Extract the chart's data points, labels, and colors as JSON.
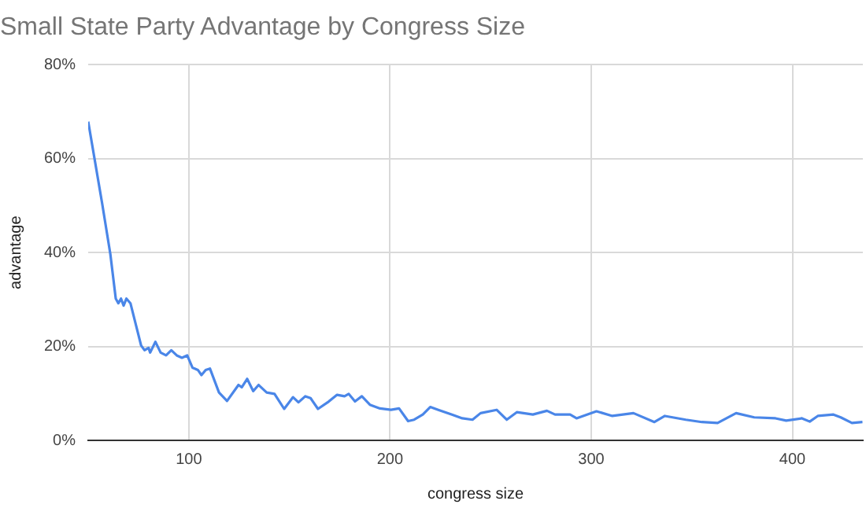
{
  "chart_data": {
    "type": "line",
    "title": "Small State Party Advantage by Congress Size",
    "xlabel": "congress size",
    "ylabel": "advantage",
    "x": [
      50,
      57,
      61,
      63.7,
      65,
      66.3,
      67.6,
      69,
      71,
      76.3,
      78,
      80,
      80.8,
      83.4,
      86,
      88.7,
      91.3,
      94,
      96.6,
      99.2,
      101.8,
      104.5,
      106.3,
      108.4,
      110.5,
      115,
      119,
      124.7,
      126.3,
      129,
      132,
      134.7,
      138.7,
      142.6,
      147.4,
      151.8,
      154.5,
      157.9,
      160.5,
      164.2,
      169,
      173.7,
      177.4,
      179.5,
      182.6,
      186,
      190,
      195,
      200.5,
      204.5,
      209,
      212,
      216.3,
      220,
      224,
      230.8,
      235.9,
      241,
      245,
      253,
      258,
      263,
      271,
      278,
      282,
      289.5,
      292.7,
      302.6,
      310.5,
      321,
      331.4,
      336.6,
      347,
      355,
      362.8,
      372,
      381,
      391.6,
      396.9,
      404.7,
      408.6,
      412.6,
      420.4,
      424,
      429.6,
      434.8
    ],
    "series": [
      {
        "color": "#4a86e8",
        "values": [
          67.9,
          50.3,
          39.7,
          30.2,
          29.2,
          30.2,
          28.7,
          30.2,
          29.2,
          20.2,
          19.2,
          19.7,
          18.7,
          21.0,
          18.7,
          18.1,
          19.2,
          18.1,
          17.6,
          18.1,
          15.5,
          15.0,
          13.9,
          15.0,
          15.3,
          10.2,
          8.4,
          11.8,
          11.3,
          13.1,
          10.5,
          11.8,
          10.2,
          9.9,
          6.7,
          9.2,
          8.1,
          9.4,
          9.0,
          6.7,
          8.1,
          9.7,
          9.4,
          9.9,
          8.3,
          9.4,
          7.6,
          6.8,
          6.5,
          6.8,
          4.1,
          4.4,
          5.5,
          7.1,
          6.5,
          5.5,
          4.7,
          4.4,
          5.8,
          6.5,
          4.4,
          6.0,
          5.5,
          6.3,
          5.5,
          5.5,
          4.7,
          6.2,
          5.2,
          5.8,
          3.9,
          5.2,
          4.4,
          3.9,
          3.7,
          5.8,
          4.9,
          4.7,
          4.2,
          4.7,
          4.0,
          5.2,
          5.5,
          4.9,
          3.7,
          3.9
        ]
      }
    ],
    "xlim": [
      50,
      435
    ],
    "xticks": [
      100,
      200,
      300,
      400
    ],
    "ylim": [
      0,
      80
    ],
    "yticks": [
      {
        "value": 0,
        "label": "0%"
      },
      {
        "value": 20,
        "label": "20%"
      },
      {
        "value": 40,
        "label": "40%"
      },
      {
        "value": 60,
        "label": "60%"
      },
      {
        "value": 80,
        "label": "80%"
      }
    ],
    "grid": true,
    "legend": false,
    "marker": "none",
    "line_style": "solid"
  }
}
